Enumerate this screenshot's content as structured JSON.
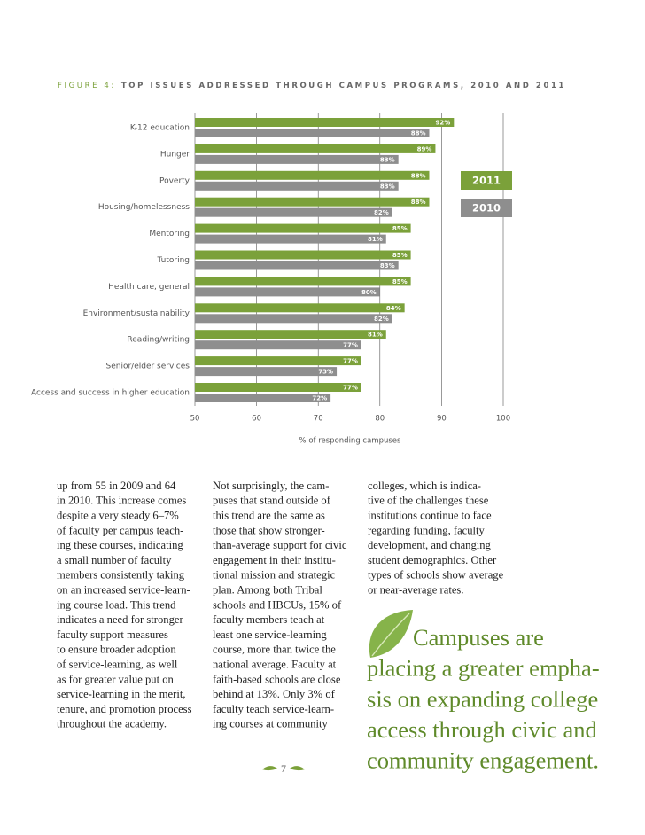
{
  "chart_data": {
    "type": "bar",
    "orientation": "horizontal",
    "figure_label": "FIGURE 4:",
    "title": "TOP ISSUES ADDRESSED THROUGH CAMPUS PROGRAMS, 2010 AND 2011",
    "xlabel": "% of responding campuses",
    "categories": [
      "K-12 education",
      "Hunger",
      "Poverty",
      "Housing/homelessness",
      "Mentoring",
      "Tutoring",
      "Health care, general",
      "Environment/sustainability",
      "Reading/writing",
      "Senior/elder services",
      "Access and success in higher education"
    ],
    "series": [
      {
        "name": "2011",
        "color": "#7ba13a",
        "values": [
          92,
          89,
          88,
          88,
          85,
          85,
          85,
          84,
          81,
          77,
          77
        ],
        "value_labels": [
          "92%",
          "89%",
          "88%",
          "88%",
          "85%",
          "85%",
          "85%",
          "84%",
          "81%",
          "77%",
          "77%"
        ]
      },
      {
        "name": "2010",
        "color": "#8e8e8e",
        "values": [
          88,
          83,
          83,
          82,
          81,
          83,
          80,
          82,
          77,
          73,
          72
        ],
        "value_labels": [
          "88%",
          "83%",
          "83%",
          "82%",
          "81%",
          "83%",
          "80%",
          "82%",
          "77%",
          "73%",
          "72%"
        ]
      }
    ],
    "xlim": [
      50,
      100
    ],
    "xticks": [
      50,
      60,
      70,
      80,
      90,
      100
    ],
    "grid": true,
    "legend": "right"
  },
  "columns": [
    {
      "lines": [
        "up from 55 in 2009 and 64",
        "in 2010. This increase comes",
        "despite a very steady 6–7%",
        "of faculty per campus teach-",
        "ing these courses, indicating",
        "a small number of faculty",
        "members consistently taking",
        "on an increased service-learn-",
        "ing course load. This trend",
        "indicates a need for stronger",
        "faculty support measures",
        "to ensure broader adoption",
        "of service-learning, as well",
        "as for greater value put on",
        "service-learning in the merit,",
        "tenure, and promotion process",
        "throughout the academy."
      ]
    },
    {
      "lines": [
        "Not surprisingly, the cam-",
        "puses that stand outside of",
        "this trend are the same as",
        "those that show stronger-",
        "than-average support for civic",
        "engagement in their institu-",
        "tional mission and strategic",
        "plan. Among both Tribal",
        "schools and HBCUs, 15% of",
        "faculty members teach at",
        "least one service-learning",
        "course, more than twice the",
        "national average. Faculty at",
        "faith-based schools are close",
        "behind at 13%. Only 3% of",
        "faculty teach service-learn-",
        "ing courses at community"
      ]
    },
    {
      "lines": [
        "colleges, which is indica-",
        "tive of the challenges these",
        "institutions continue to face",
        "regarding funding, faculty",
        "development, and changing",
        "student demographics. Other",
        "types of schools show average",
        "or near-average rates."
      ]
    }
  ],
  "pull_quote": {
    "lines": [
      "Campuses are",
      "placing a greater empha-",
      "sis on expanding college",
      "access through civic and",
      "community engagement."
    ]
  },
  "page_number": "7"
}
